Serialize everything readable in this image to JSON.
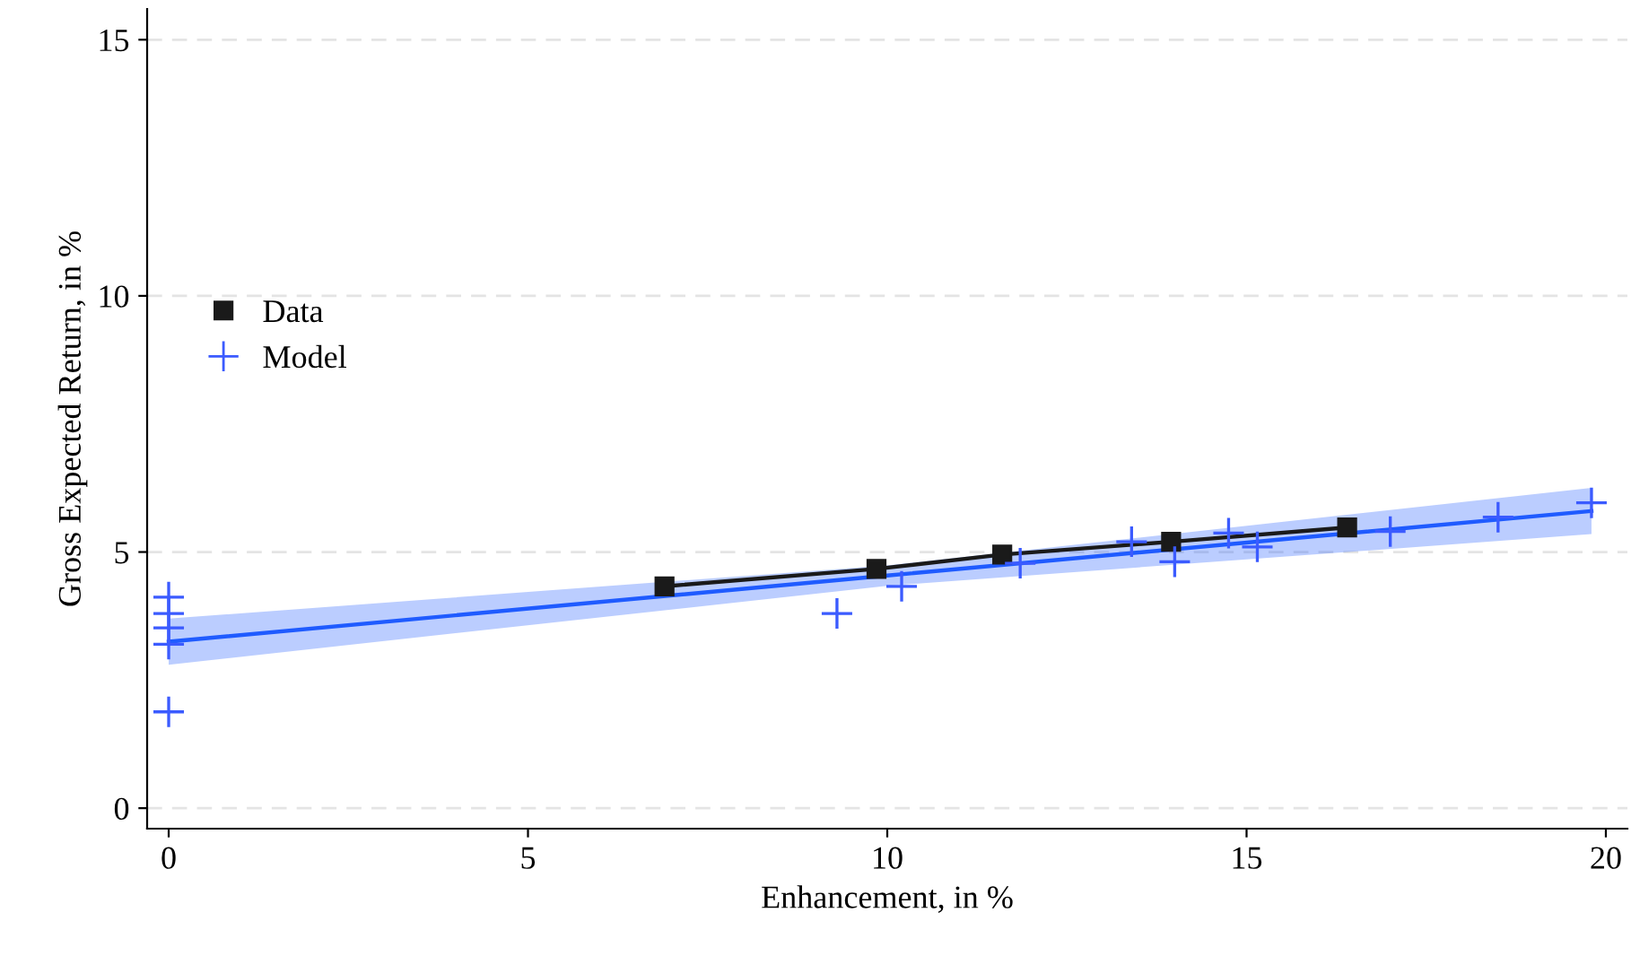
{
  "chart_data": {
    "type": "scatter",
    "xlabel": "Enhancement, in %",
    "ylabel": "Gross Expected Return, in %",
    "xlim": [
      -0.3,
      20.3
    ],
    "ylim": [
      -0.4,
      15.6
    ],
    "xticks": [
      0,
      5,
      10,
      15,
      20
    ],
    "yticks": [
      0,
      5,
      10,
      15
    ],
    "grid": "y",
    "legend": "left",
    "series": [
      {
        "type": "line",
        "color": "#1f5bff",
        "x": [
          0,
          10,
          19.8
        ],
        "values": [
          3.25,
          4.54,
          5.8
        ],
        "lower": [
          2.8,
          4.34,
          5.35
        ],
        "upper": [
          3.7,
          4.74,
          6.25
        ],
        "marker": "none"
      },
      {
        "name": "Data",
        "type": "line",
        "color": "#1a1a1a",
        "marker": "square",
        "x": [
          6.9,
          9.85,
          11.6,
          13.95,
          16.4
        ],
        "values": [
          4.33,
          4.67,
          4.95,
          5.2,
          5.48
        ]
      },
      {
        "name": "Model",
        "color": "#3b5bff",
        "marker": "cross",
        "x": [
          0,
          0,
          0,
          0,
          0,
          9.3,
          10.2,
          11.85,
          13.4,
          14.0,
          14.75,
          15.15,
          17.0,
          18.5,
          19.8
        ],
        "values": [
          4.12,
          3.8,
          3.52,
          3.2,
          1.88,
          3.8,
          4.33,
          4.78,
          5.2,
          4.81,
          5.37,
          5.1,
          5.4,
          5.68,
          5.96
        ]
      }
    ]
  }
}
